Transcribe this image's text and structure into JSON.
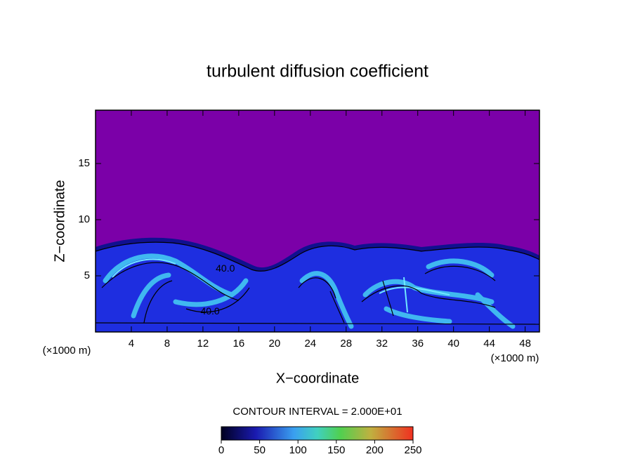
{
  "chart_data": {
    "type": "contour",
    "title": "turbulent diffusion coefficient",
    "x_label": "X−coordinate",
    "y_label": "Z−coordinate",
    "x_unit": "(×1000 m)",
    "y_unit": "(×1000 m)",
    "xlim": [
      0,
      49.6
    ],
    "xticks": [
      4,
      8,
      12,
      16,
      20,
      24,
      28,
      32,
      36,
      40,
      44,
      48
    ],
    "ylim": [
      0,
      19.75
    ],
    "yticks": [
      5,
      10,
      15
    ],
    "contour_interval": "CONTOUR INTERVAL = 2.000E+01",
    "colorbar": {
      "lim": [
        0,
        250
      ],
      "ticks": [
        0,
        50,
        100,
        150,
        200,
        250
      ]
    },
    "contour_labels": [
      {
        "value": 40,
        "label": "40.0",
        "x": 12.8,
        "z": 1.8
      },
      {
        "value": 40,
        "label": "40.0",
        "x": 14.5,
        "z": 5.6
      }
    ]
  }
}
